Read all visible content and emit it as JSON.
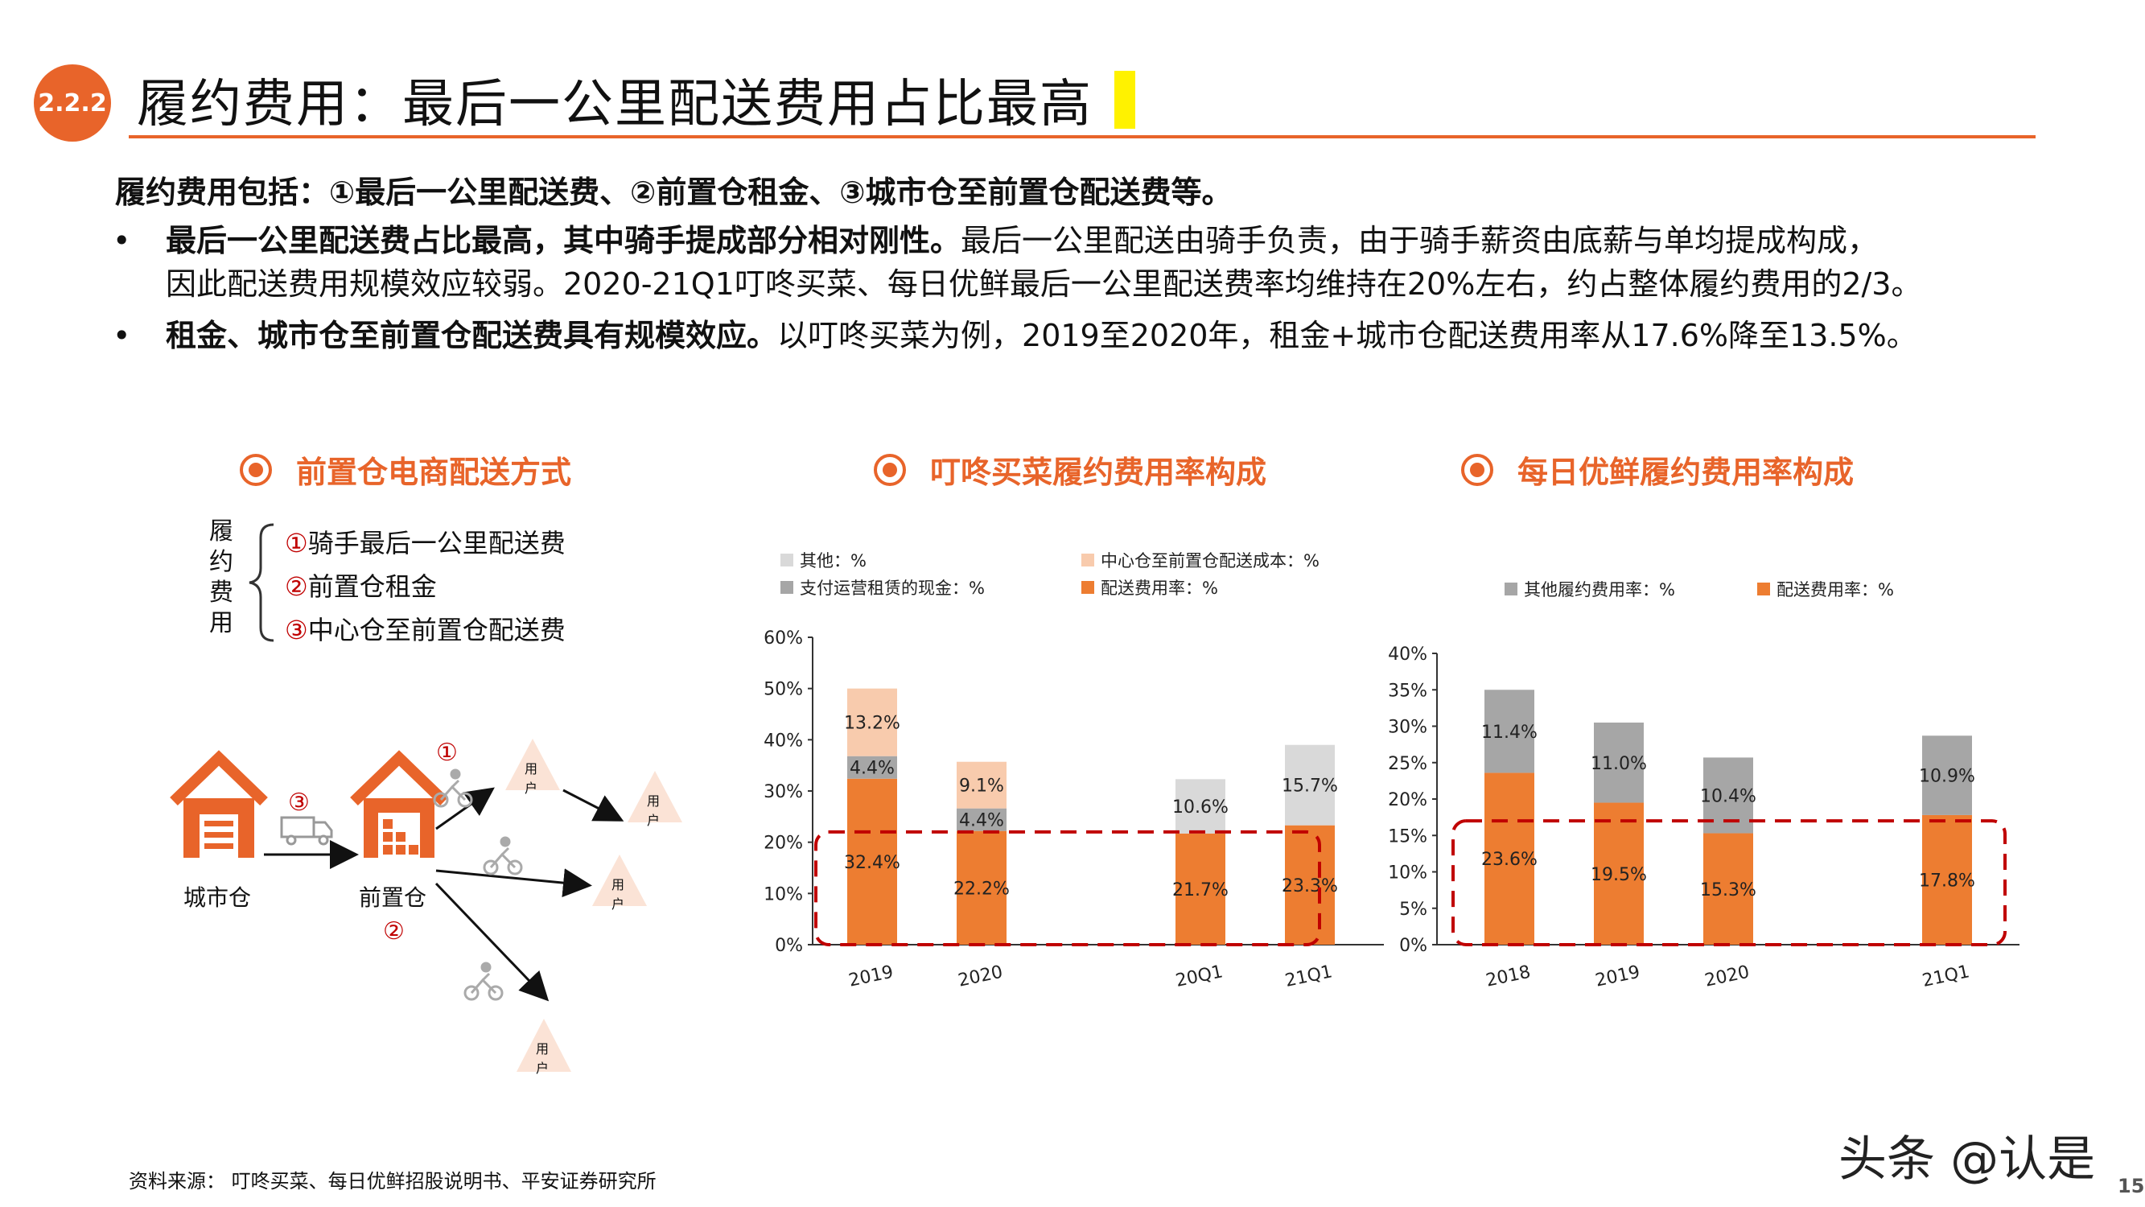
{
  "header": {
    "section_badge": "2.2.2",
    "title": "履约费用：最后一公里配送费用占比最高"
  },
  "intro": "履约费用包括：①最后一公里配送费、②前置仓租金、③城市仓至前置仓配送费等。",
  "bullets": [
    {
      "dot": "•",
      "bold": "最后一公里配送费占比最高，其中骑手提成部分相对刚性。",
      "text": "最后一公里配送由骑手负责，由于骑手薪资由底薪与单均提成构成，",
      "line2": "因此配送费用规模效应较弱。2020-21Q1叮咚买菜、每日优鲜最后一公里配送费率均维持在20%左右，约占整体履约费用的2/3。"
    },
    {
      "dot": "•",
      "bold": "租金、城市仓至前置仓配送费具有规模效应。",
      "text": "以叮咚买菜为例，2019至2020年，租金+城市仓配送费用率从17.6%降至13.5%。",
      "line2": ""
    }
  ],
  "diagram": {
    "title": "前置仓电商配送方式",
    "bracket_label": [
      "履",
      "约",
      "费",
      "用"
    ],
    "items": [
      {
        "num": "①",
        "label": "骑手最后一公里配送费"
      },
      {
        "num": "②",
        "label": "前置仓租金"
      },
      {
        "num": "③",
        "label": "中心仓至前置仓配送费"
      }
    ],
    "city_label": "城市仓",
    "front_label": "前置仓",
    "num1": "①",
    "num2": "②",
    "num3": "③",
    "user_label_top": "用",
    "user_label_bottom": "户"
  },
  "colors": {
    "accent": "#e8642a",
    "delivery": "#ed7d31",
    "center": "#f8cbad",
    "rent": "#a6a6a6",
    "other": "#d9d9d9",
    "dashed": "#c00000",
    "highlight": "#fff200"
  },
  "chart_data": [
    {
      "type": "bar",
      "stacked": true,
      "title": "叮咚买菜履约费用率构成",
      "categories": [
        "2019",
        "2020",
        "20Q1",
        "21Q1"
      ],
      "ylim": [
        0,
        60
      ],
      "yticks": [
        "0%",
        "10%",
        "20%",
        "30%",
        "40%",
        "50%",
        "60%"
      ],
      "series": [
        {
          "name": "配送费用率：%",
          "color": "#ed7d31",
          "values": [
            32.4,
            22.2,
            21.7,
            23.3
          ],
          "labels": [
            "32.4%",
            "22.2%",
            "21.7%",
            "23.3%"
          ]
        },
        {
          "name": "支付运营租赁的现金：%",
          "color": "#a6a6a6",
          "values": [
            4.4,
            4.4,
            null,
            null
          ],
          "labels": [
            "4.4%",
            "4.4%",
            "",
            ""
          ]
        },
        {
          "name": "中心仓至前置仓配送成本：%",
          "color": "#f8cbad",
          "values": [
            13.2,
            9.1,
            null,
            null
          ],
          "labels": [
            "13.2%",
            "9.1%",
            "",
            ""
          ]
        },
        {
          "name": "其他：%",
          "color": "#d9d9d9",
          "values": [
            null,
            null,
            10.6,
            15.7
          ],
          "labels": [
            "",
            "",
            "10.6%",
            "15.7%"
          ]
        }
      ],
      "legend": [
        "其他：%",
        "中心仓至前置仓配送成本：%",
        "支付运营租赁的现金：%",
        "配送费用率：%"
      ]
    },
    {
      "type": "bar",
      "stacked": true,
      "title": "每日优鲜履约费用率构成",
      "categories": [
        "2018",
        "2019",
        "2020",
        "21Q1"
      ],
      "ylim": [
        0,
        40
      ],
      "yticks": [
        "0%",
        "5%",
        "10%",
        "15%",
        "20%",
        "25%",
        "30%",
        "35%",
        "40%"
      ],
      "series": [
        {
          "name": "配送费用率：%",
          "color": "#ed7d31",
          "values": [
            23.6,
            19.5,
            15.3,
            17.8
          ],
          "labels": [
            "23.6%",
            "19.5%",
            "15.3%",
            "17.8%"
          ]
        },
        {
          "name": "其他履约费用率：%",
          "color": "#a6a6a6",
          "values": [
            11.4,
            11.0,
            10.4,
            10.9
          ],
          "labels": [
            "11.4%",
            "11.0%",
            "10.4%",
            "10.9%"
          ]
        }
      ],
      "legend": [
        "其他履约费用率：%",
        "配送费用率：%"
      ]
    }
  ],
  "footer": {
    "source": "资料来源：   叮咚买菜、每日优鲜招股说明书、平安证券研究所",
    "watermark": "头条 @认是",
    "page": "15"
  }
}
